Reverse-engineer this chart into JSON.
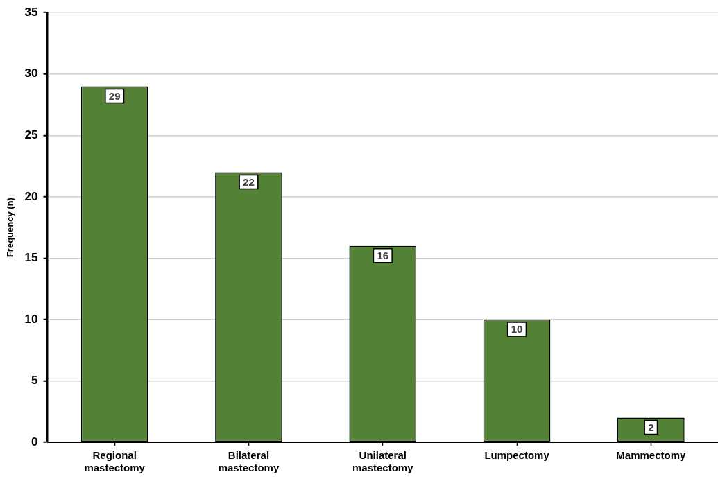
{
  "chart_data": {
    "type": "bar",
    "ylabel": "Frequency (n)",
    "categories": [
      "Regional mastectomy",
      "Bilateral mastectomy",
      "Unilateral mastectomy",
      "Lumpectomy",
      "Mammectomy"
    ],
    "values": [
      29,
      22,
      16,
      10,
      2
    ],
    "color": "#538135",
    "ylim": [
      0,
      35
    ],
    "yticks": [
      0,
      5,
      10,
      15,
      20,
      25,
      30,
      35
    ],
    "grid": "y",
    "data_labels": true
  }
}
